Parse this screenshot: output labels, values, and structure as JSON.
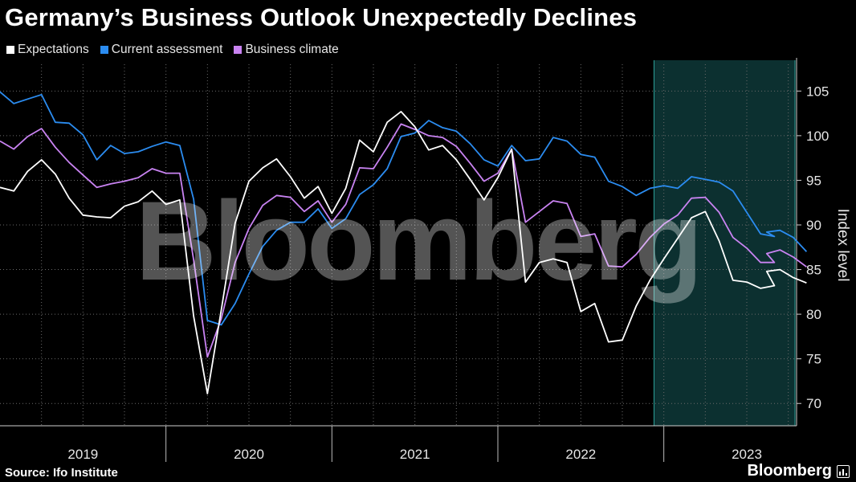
{
  "title": "Germany’s Business Outlook Unexpectedly Declines",
  "source": "Source: Ifo Institute",
  "brand": "Bloomberg",
  "watermark": "Bloomberg",
  "colors": {
    "expectations": "#ffffff",
    "current": "#2b8cf0",
    "climate": "#c983f2",
    "highlight_fill": "#0c3030",
    "highlight_edge": "#2fa39b",
    "grid": "#6a6a6a"
  },
  "chart_data": {
    "type": "line",
    "title": "Germany’s Business Outlook Unexpectedly Declines",
    "ylabel": "Index level",
    "ylim": [
      67.5,
      108
    ],
    "yticks": [
      70,
      75,
      80,
      85,
      90,
      95,
      100,
      105
    ],
    "xlim": [
      2019.0,
      2023.8
    ],
    "year_labels": [
      "2019",
      "2020",
      "2021",
      "2022",
      "2023"
    ],
    "grid": true,
    "legend_position": "top-left",
    "highlight": {
      "from": "2022-12",
      "to": "2023-09"
    },
    "x": [
      "2019-01",
      "2019-02",
      "2019-03",
      "2019-04",
      "2019-05",
      "2019-06",
      "2019-07",
      "2019-08",
      "2019-09",
      "2019-10",
      "2019-11",
      "2019-12",
      "2020-01",
      "2020-02",
      "2020-03",
      "2020-04",
      "2020-05",
      "2020-06",
      "2020-07",
      "2020-08",
      "2020-09",
      "2020-10",
      "2020-11",
      "2020-12",
      "2021-01",
      "2021-02",
      "2021-03",
      "2021-04",
      "2021-05",
      "2021-06",
      "2021-07",
      "2021-08",
      "2021-09",
      "2021-10",
      "2021-11",
      "2021-12",
      "2022-01",
      "2022-02",
      "2022-03",
      "2022-04",
      "2022-05",
      "2022-06",
      "2022-07",
      "2022-08",
      "2022-09",
      "2022-10",
      "2022-11",
      "2022-12",
      "2023-01",
      "2023-02",
      "2023-03",
      "2023-04",
      "2023-05",
      "2023-06",
      "2023-07",
      "2023-08",
      "2023-09"
    ],
    "series": [
      {
        "name": "Expectations",
        "key": "expectations",
        "values": [
          94.2,
          93.8,
          96.0,
          97.3,
          95.7,
          93.0,
          91.1,
          90.9,
          90.8,
          92.1,
          92.6,
          93.8,
          92.3,
          92.8,
          79.8,
          71.1,
          80.5,
          90.2,
          94.9,
          96.4,
          97.4,
          95.4,
          93.0,
          94.3,
          91.3,
          94.1,
          99.5,
          98.2,
          101.5,
          102.7,
          101.0,
          98.4,
          98.9,
          97.3,
          95.1,
          92.8,
          95.3,
          98.5,
          83.6,
          85.8,
          86.2,
          85.8,
          80.3,
          81.2,
          76.9,
          77.1,
          80.9,
          83.8,
          86.2,
          88.5,
          90.8,
          91.5,
          88.2,
          83.8,
          83.6,
          82.9,
          83.2
        ]
      },
      {
        "name": "Current assessment",
        "key": "current",
        "values": [
          104.9,
          103.6,
          104.1,
          104.6,
          101.5,
          101.4,
          100.1,
          97.3,
          98.9,
          98.0,
          98.2,
          98.8,
          99.3,
          98.9,
          92.9,
          79.3,
          78.8,
          81.2,
          84.5,
          87.6,
          89.4,
          90.3,
          90.3,
          91.8,
          89.6,
          90.7,
          93.4,
          94.5,
          96.3,
          99.9,
          100.3,
          101.7,
          100.9,
          100.5,
          99.1,
          97.3,
          96.6,
          98.9,
          97.2,
          97.4,
          99.8,
          99.4,
          97.9,
          97.6,
          94.9,
          94.3,
          93.3,
          94.1,
          94.4,
          94.1,
          95.4,
          95.1,
          94.8,
          93.8,
          91.4,
          89.0,
          88.7
        ]
      },
      {
        "name": "Business climate",
        "key": "climate",
        "values": [
          99.4,
          98.5,
          99.9,
          100.8,
          98.7,
          97.0,
          95.6,
          94.2,
          94.6,
          94.9,
          95.3,
          96.3,
          95.8,
          95.8,
          86.1,
          75.2,
          79.5,
          85.8,
          89.6,
          92.2,
          93.3,
          93.1,
          91.5,
          92.7,
          90.3,
          92.3,
          96.4,
          96.3,
          98.7,
          101.3,
          100.7,
          100.0,
          99.8,
          98.8,
          96.9,
          94.9,
          95.8,
          98.5,
          90.3,
          91.5,
          92.7,
          92.4,
          88.7,
          89.0,
          85.4,
          85.3,
          86.7,
          88.6,
          90.1,
          91.1,
          93.0,
          93.1,
          91.4,
          88.6,
          87.4,
          85.8,
          85.8
        ]
      }
    ],
    "extra_points": {
      "expectations": [
        [
          2023.62,
          84.8
        ],
        [
          2023.7,
          85.0
        ],
        [
          2023.78,
          84.1
        ],
        [
          2023.86,
          83.5
        ]
      ],
      "current": [
        [
          2023.62,
          89.2
        ],
        [
          2023.7,
          89.4
        ],
        [
          2023.78,
          88.6
        ],
        [
          2023.86,
          87.0
        ]
      ],
      "climate": [
        [
          2023.62,
          86.8
        ],
        [
          2023.7,
          87.2
        ],
        [
          2023.78,
          86.4
        ],
        [
          2023.86,
          85.3
        ]
      ]
    }
  }
}
